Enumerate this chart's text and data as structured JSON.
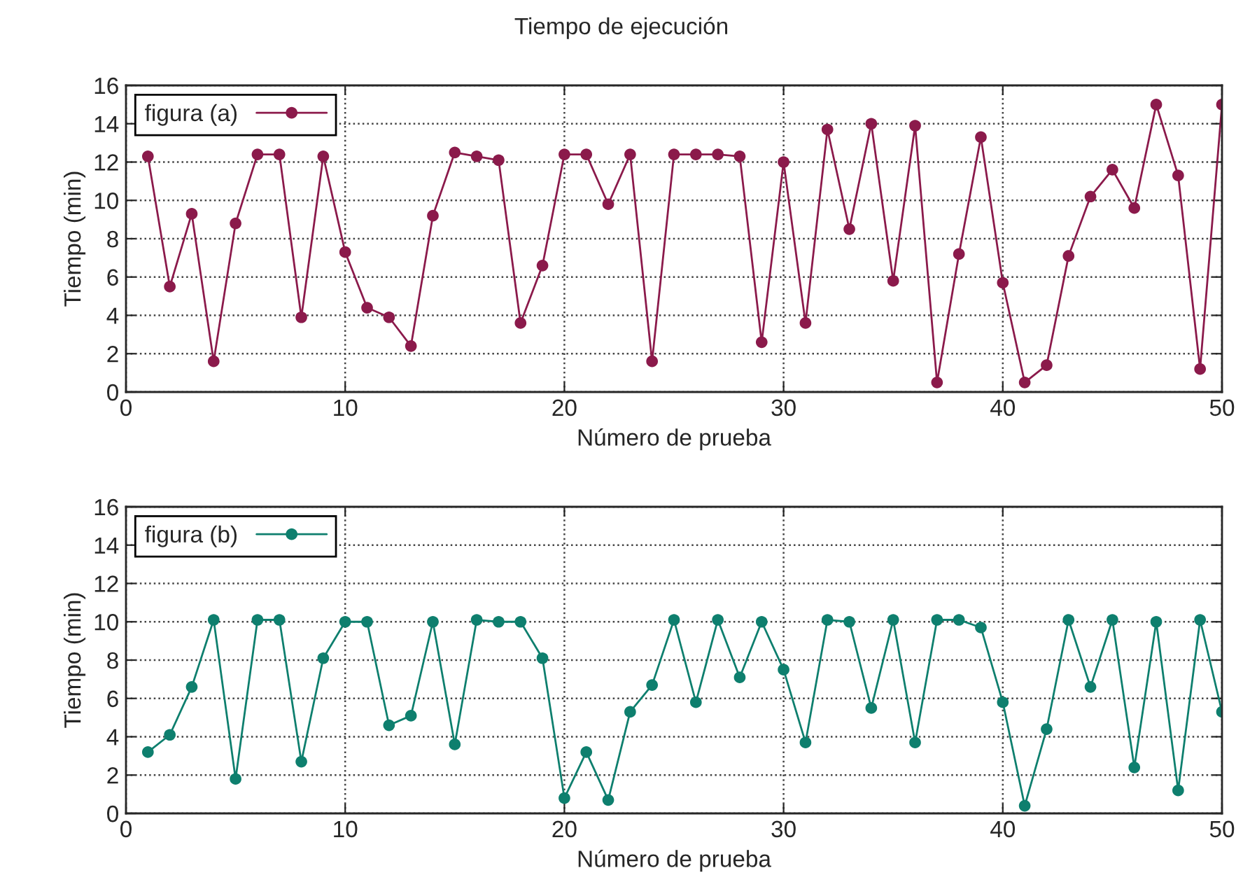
{
  "chart_data": [
    {
      "type": "line",
      "title": "Tiempo de ejecución",
      "xlabel": "Número de prueba",
      "ylabel": "Tiempo (min)",
      "xlim": [
        0,
        50
      ],
      "xticks": [
        0,
        10,
        20,
        30,
        40,
        50
      ],
      "ylim": [
        0,
        16
      ],
      "yticks": [
        0,
        2,
        4,
        6,
        8,
        10,
        12,
        14,
        16
      ],
      "grid": true,
      "legend": "top left",
      "marker": "circle",
      "line_style": "solid",
      "x": [
        1,
        2,
        3,
        4,
        5,
        6,
        7,
        8,
        9,
        10,
        11,
        12,
        13,
        14,
        15,
        16,
        17,
        18,
        19,
        20,
        21,
        22,
        23,
        24,
        25,
        26,
        27,
        28,
        29,
        30,
        31,
        32,
        33,
        34,
        35,
        36,
        37,
        38,
        39,
        40,
        41,
        42,
        43,
        44,
        45,
        46,
        47,
        48,
        49,
        50
      ],
      "series": [
        {
          "name": "figura (a)",
          "color": "#8b1a4b",
          "values": [
            12.3,
            5.5,
            9.3,
            1.6,
            8.8,
            12.4,
            12.4,
            3.9,
            12.3,
            7.3,
            4.4,
            3.9,
            2.4,
            9.2,
            12.5,
            12.3,
            12.1,
            3.6,
            6.6,
            12.4,
            12.4,
            9.8,
            12.4,
            1.6,
            12.4,
            12.4,
            12.4,
            12.3,
            2.6,
            12.0,
            3.6,
            13.7,
            8.5,
            14.0,
            5.8,
            13.9,
            0.5,
            7.2,
            13.3,
            5.7,
            0.5,
            1.4,
            7.1,
            10.2,
            11.6,
            9.6,
            15.0,
            11.3,
            1.2,
            15.0
          ]
        }
      ]
    },
    {
      "type": "line",
      "xlabel": "Número de prueba",
      "ylabel": "Tiempo (min)",
      "xlim": [
        0,
        50
      ],
      "xticks": [
        0,
        10,
        20,
        30,
        40,
        50
      ],
      "ylim": [
        0,
        16
      ],
      "yticks": [
        0,
        2,
        4,
        6,
        8,
        10,
        12,
        14,
        16
      ],
      "grid": true,
      "legend": "top left",
      "marker": "circle",
      "line_style": "solid",
      "x": [
        1,
        2,
        3,
        4,
        5,
        6,
        7,
        8,
        9,
        10,
        11,
        12,
        13,
        14,
        15,
        16,
        17,
        18,
        19,
        20,
        21,
        22,
        23,
        24,
        25,
        26,
        27,
        28,
        29,
        30,
        31,
        32,
        33,
        34,
        35,
        36,
        37,
        38,
        39,
        40,
        41,
        42,
        43,
        44,
        45,
        46,
        47,
        48,
        49,
        50
      ],
      "series": [
        {
          "name": "figura (b)",
          "color": "#0e7f6e",
          "values": [
            3.2,
            4.1,
            6.6,
            10.1,
            1.8,
            10.1,
            10.1,
            2.7,
            8.1,
            10.0,
            10.0,
            4.6,
            5.1,
            10.0,
            3.6,
            10.1,
            10.0,
            10.0,
            8.1,
            0.8,
            3.2,
            0.7,
            5.3,
            6.7,
            10.1,
            5.8,
            10.1,
            7.1,
            10.0,
            7.5,
            3.7,
            10.1,
            10.0,
            5.5,
            10.1,
            3.7,
            10.1,
            10.1,
            9.7,
            5.8,
            0.4,
            4.4,
            10.1,
            6.6,
            10.1,
            2.4,
            10.0,
            1.2,
            10.1,
            5.3
          ]
        }
      ]
    }
  ]
}
